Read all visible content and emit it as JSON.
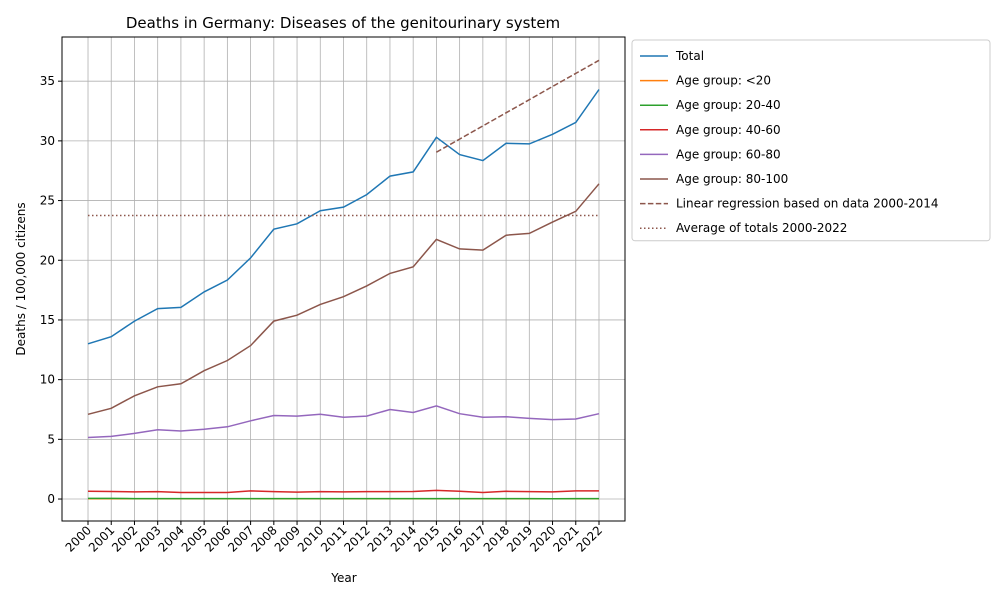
{
  "chart_data": {
    "type": "line",
    "title": "Deaths in Germany: Diseases of the genitourinary system",
    "x_label": "Year",
    "y_label": "Deaths / 100,000 citizens",
    "x": [
      2000,
      2001,
      2002,
      2003,
      2004,
      2005,
      2006,
      2007,
      2008,
      2009,
      2010,
      2011,
      2012,
      2013,
      2014,
      2015,
      2016,
      2017,
      2018,
      2019,
      2020,
      2021,
      2022
    ],
    "series": [
      {
        "name": "Total",
        "color": "#1f77b4",
        "linestyle": "solid",
        "values": [
          13.0,
          13.6,
          14.9,
          15.95,
          16.05,
          17.35,
          18.35,
          20.2,
          22.6,
          23.05,
          24.15,
          24.45,
          25.5,
          27.05,
          27.4,
          30.3,
          28.85,
          28.35,
          29.8,
          29.75,
          30.55,
          31.55,
          34.3
        ]
      },
      {
        "name": "Age group: <20",
        "color": "#ff7f0e",
        "linestyle": "solid",
        "values": [
          0.02,
          0.02,
          0.02,
          0.02,
          0.02,
          0.02,
          0.02,
          0.02,
          0.02,
          0.02,
          0.02,
          0.02,
          0.02,
          0.02,
          0.02,
          0.02,
          0.02,
          0.02,
          0.02,
          0.02,
          0.02,
          0.02,
          0.02
        ]
      },
      {
        "name": "Age group: 20-40",
        "color": "#2ca02c",
        "linestyle": "solid",
        "values": [
          0.05,
          0.05,
          0.04,
          0.04,
          0.04,
          0.04,
          0.04,
          0.04,
          0.04,
          0.04,
          0.04,
          0.04,
          0.04,
          0.04,
          0.04,
          0.04,
          0.04,
          0.04,
          0.04,
          0.04,
          0.03,
          0.04,
          0.04
        ]
      },
      {
        "name": "Age group: 40-60",
        "color": "#d62728",
        "linestyle": "solid",
        "values": [
          0.65,
          0.63,
          0.6,
          0.62,
          0.55,
          0.55,
          0.55,
          0.68,
          0.62,
          0.58,
          0.62,
          0.6,
          0.62,
          0.62,
          0.63,
          0.72,
          0.65,
          0.55,
          0.65,
          0.62,
          0.6,
          0.68,
          0.68
        ]
      },
      {
        "name": "Age group: 60-80",
        "color": "#9467bd",
        "linestyle": "solid",
        "values": [
          5.15,
          5.25,
          5.5,
          5.8,
          5.7,
          5.85,
          6.05,
          6.55,
          7.0,
          6.95,
          7.1,
          6.85,
          6.95,
          7.5,
          7.25,
          7.8,
          7.15,
          6.85,
          6.9,
          6.75,
          6.65,
          6.7,
          7.15
        ]
      },
      {
        "name": "Age group: 80-100",
        "color": "#8c564b",
        "linestyle": "solid",
        "values": [
          7.1,
          7.6,
          8.65,
          9.4,
          9.65,
          10.75,
          11.6,
          12.85,
          14.9,
          15.4,
          16.3,
          16.95,
          17.85,
          18.9,
          19.45,
          21.75,
          20.95,
          20.85,
          22.1,
          22.25,
          23.2,
          24.1,
          26.4
        ]
      },
      {
        "name": "Linear regression based on data 2000-2014",
        "color": "#8c564b",
        "linestyle": "dashed",
        "values": [
          null,
          null,
          null,
          null,
          null,
          null,
          null,
          null,
          null,
          null,
          null,
          null,
          null,
          null,
          null,
          29.05,
          30.15,
          31.25,
          32.35,
          33.45,
          34.55,
          35.65,
          36.75
        ]
      },
      {
        "name": "Average of totals 2000-2022",
        "color": "#8c564b",
        "linestyle": "dotted",
        "values": [
          23.75,
          23.75,
          23.75,
          23.75,
          23.75,
          23.75,
          23.75,
          23.75,
          23.75,
          23.75,
          23.75,
          23.75,
          23.75,
          23.75,
          23.75,
          23.75,
          23.75,
          23.75,
          23.75,
          23.75,
          23.75,
          23.75,
          23.75
        ]
      }
    ],
    "xlim": [
      1998.88,
      2023.12
    ],
    "ylim": [
      -1.84,
      38.7
    ],
    "xticks": [
      2000,
      2001,
      2002,
      2003,
      2004,
      2005,
      2006,
      2007,
      2008,
      2009,
      2010,
      2011,
      2012,
      2013,
      2014,
      2015,
      2016,
      2017,
      2018,
      2019,
      2020,
      2021,
      2022
    ],
    "yticks": [
      0,
      5,
      10,
      15,
      20,
      25,
      30,
      35
    ],
    "grid": true,
    "legend": "outside upper right"
  }
}
